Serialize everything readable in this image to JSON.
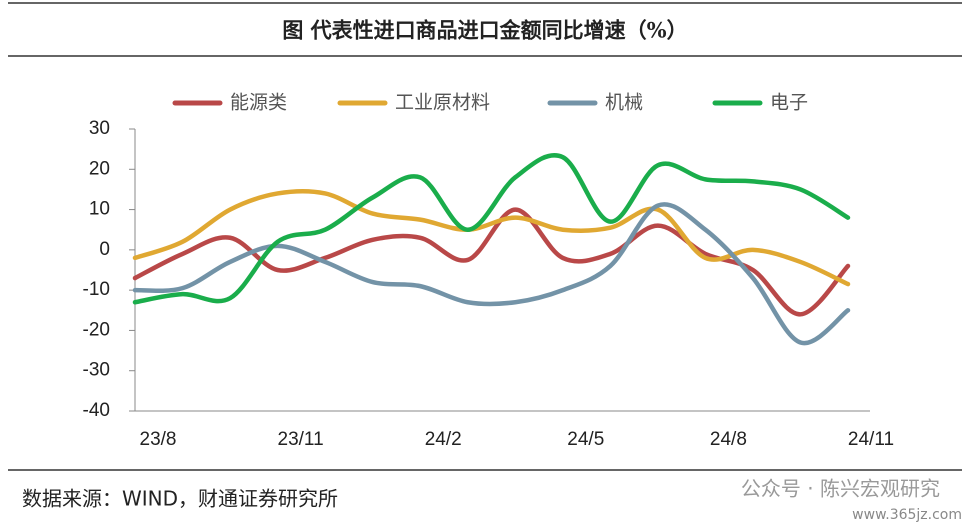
{
  "chart_data": {
    "type": "line",
    "title": "图  代表性进口商品进口金额同比增速（%）",
    "source": "数据来源：WIND，财通证券研究所",
    "annotations": [
      "公众号 · 陈兴宏观研究",
      "www.365jz.com"
    ],
    "categories": [
      "23/8",
      null,
      null,
      "23/11",
      null,
      null,
      "24/2",
      null,
      null,
      "24/5",
      null,
      null,
      "24/8",
      null,
      null,
      "24/11"
    ],
    "ylim": [
      -40,
      30
    ],
    "yticks": [
      30,
      20,
      10,
      0,
      -10,
      -20,
      -30,
      -40
    ],
    "series": [
      {
        "name": "能源类",
        "color": "#b94848",
        "values": [
          -7,
          -1,
          3,
          -5,
          -2,
          2.5,
          3,
          -2.5,
          10,
          -2,
          -1,
          6,
          -1,
          -5,
          -16,
          -4
        ]
      },
      {
        "name": "工业原材料",
        "color": "#e0a832",
        "values": [
          -2,
          2,
          10,
          14,
          14,
          9,
          7.5,
          5,
          8,
          5,
          5.5,
          10,
          -2,
          0,
          -3,
          -8.5
        ]
      },
      {
        "name": "机械",
        "color": "#7393a7",
        "values": [
          -10,
          -9.5,
          -3,
          1,
          -3,
          -8,
          -9,
          -13,
          -13,
          -10,
          -4,
          11,
          5,
          -7,
          -23,
          -15
        ]
      },
      {
        "name": "电子",
        "color": "#1aad4b",
        "values": [
          -13,
          -11,
          -12,
          2,
          5,
          13,
          18,
          5,
          18,
          23,
          7,
          21,
          17.5,
          17,
          15,
          8
        ]
      }
    ]
  }
}
